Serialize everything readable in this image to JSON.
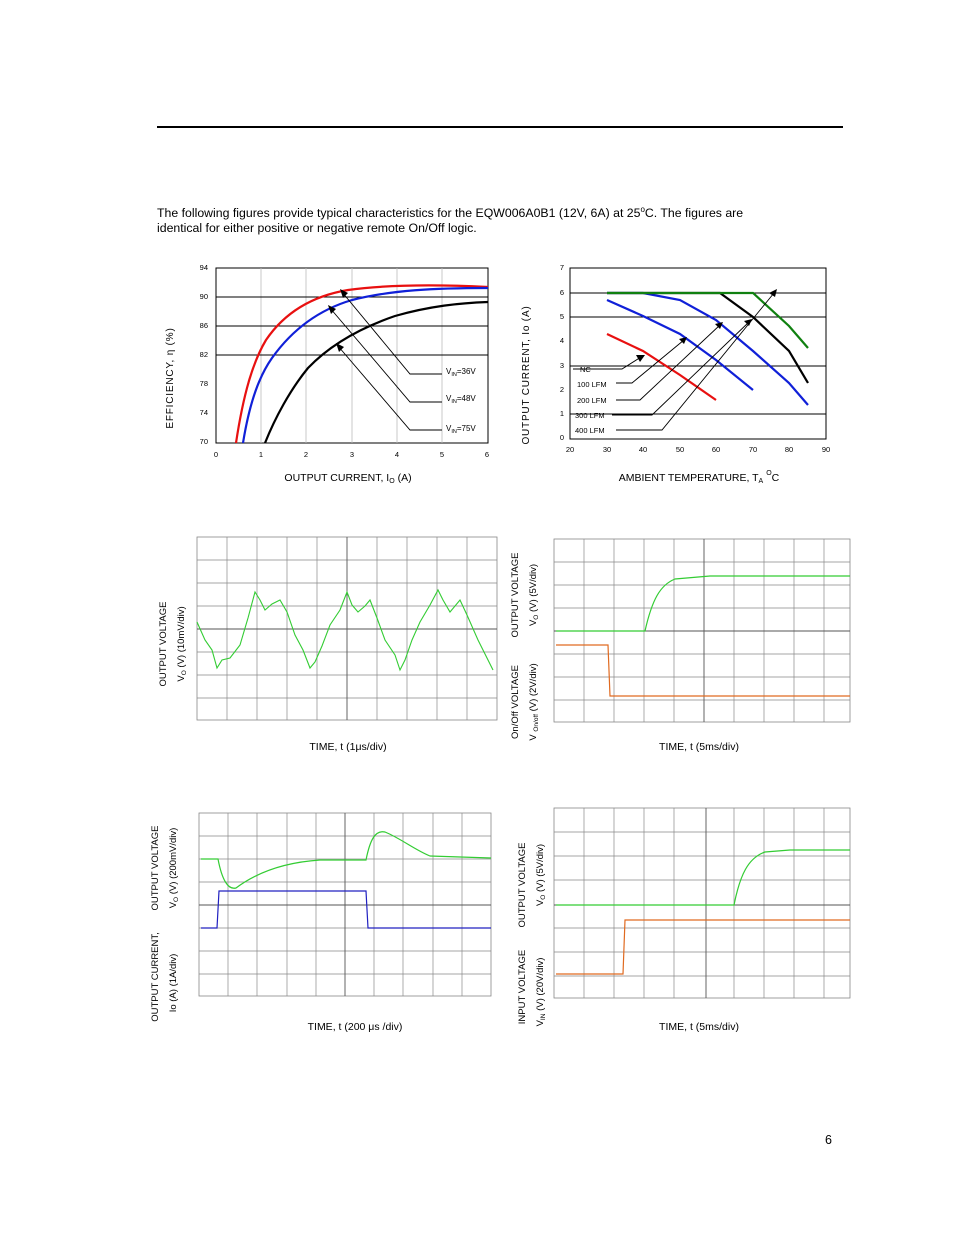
{
  "intro": {
    "line1_a": "The following figures provide typical characteristics for the EQW006A0B1 (12V, 6A) at 25",
    "line1_sup": "o",
    "line1_b": "C.  The figures are",
    "line2": "identical for either positive or negative remote On/Off logic."
  },
  "page_number": "6",
  "efficiency_chart": {
    "ylabel_a": "EFFICIENCY, ",
    "ylabel_eta": "η",
    "ylabel_b": "  (%)",
    "xlabel_a": "OUTPUT CURRENT, I",
    "xlabel_sub": "O",
    "xlabel_b": " (A)",
    "y_ticks": [
      "94",
      "90",
      "86",
      "82",
      "78",
      "74",
      "70"
    ],
    "x_ticks": [
      "0",
      "1",
      "2",
      "3",
      "4",
      "5",
      "6"
    ],
    "legend": [
      {
        "pre": "V",
        "sub": "IN",
        "post": "=36V"
      },
      {
        "pre": "V",
        "sub": "IN",
        "post": "=48V"
      },
      {
        "pre": "V",
        "sub": "IN",
        "post": "=75V"
      }
    ]
  },
  "derating_chart": {
    "ylabel": "OUTPUT CURRENT, Io  (A)",
    "xlabel_a": "AMBIENT TEMPERATURE, T",
    "xlabel_sub": "A",
    "xlabel_sup": "O",
    "xlabel_b": "C",
    "y_ticks": [
      "7",
      "6",
      "5",
      "4",
      "3",
      "2",
      "1",
      "0"
    ],
    "x_ticks": [
      "20",
      "30",
      "40",
      "50",
      "60",
      "70",
      "80",
      "90"
    ],
    "legend": [
      "NC",
      "100 LFM",
      "200 LFM",
      "300 LFM",
      "400 LFM"
    ]
  },
  "scope_ripple": {
    "ylabel1": "OUTPUT VOLTAGE",
    "ylabel2_pre": "V",
    "ylabel2_sub": "O",
    "ylabel2_post": " (V) (10mV/div)",
    "xlabel_pre": "TIME, t (1",
    "xlabel_mu": "μ",
    "xlabel_post": "s/div)"
  },
  "scope_onoff": {
    "ylabel1": "OUTPUT VOLTAGE",
    "ylabel2_pre": "V",
    "ylabel2_sub": "O",
    "ylabel2_post": " (V) (5V/div)",
    "ylabel3": "On/Off  VOLTAGE",
    "ylabel4_pre": "V ",
    "ylabel4_sub": "On/off",
    "ylabel4_post": " (V) (2V/div)",
    "xlabel": "TIME, t (5ms/div)"
  },
  "scope_transient": {
    "ylabel1": "OUTPUT VOLTAGE",
    "ylabel2_pre": "V",
    "ylabel2_sub": "O",
    "ylabel2_post": " (V) (200mV/div)",
    "ylabel3": "OUTPUT CURRENT,",
    "ylabel4": "Io (A) (1A/div)",
    "xlabel_pre": "TIME, t (200 ",
    "xlabel_mu": "μ",
    "xlabel_post": "s /div)"
  },
  "scope_vin": {
    "ylabel1": "OUTPUT VOLTAGE",
    "ylabel2_pre": "V",
    "ylabel2_sub": "O",
    "ylabel2_post": " (V) (5V/div)",
    "ylabel3": "INPUT VOLTAGE",
    "ylabel4_pre": "V",
    "ylabel4_sub": "IN",
    "ylabel4_post": " (V) (20V/div)",
    "xlabel": "TIME, t (5ms/div)"
  },
  "colors": {
    "red": "#e81010",
    "blue": "#1020d8",
    "black": "#000000",
    "green": "#108010",
    "scope_green": "#33cc33",
    "scope_orange": "#e06a20",
    "scope_blue": "#2020c0",
    "grid": "#888888"
  }
}
